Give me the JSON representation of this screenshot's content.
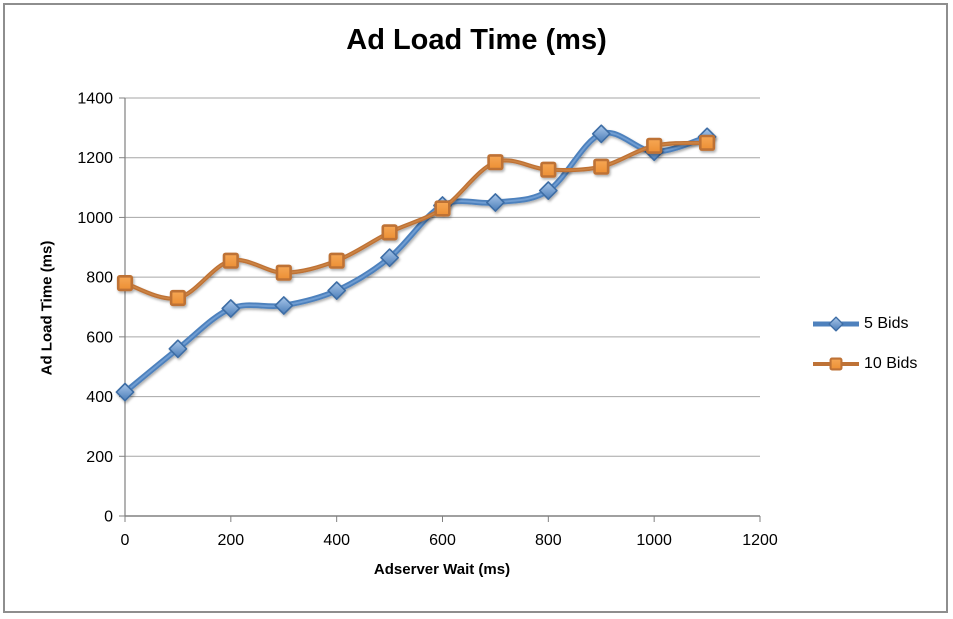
{
  "chart_data": {
    "type": "line",
    "title": "Ad Load Time (ms)",
    "xlabel": "Adserver Wait (ms)",
    "ylabel": "Ad Load Time (ms)",
    "x": [
      0,
      100,
      200,
      300,
      400,
      500,
      600,
      700,
      800,
      900,
      1000,
      1100
    ],
    "series": [
      {
        "name": "5 Bids",
        "marker": "diamond",
        "line_color": "#4E81BD",
        "line_highlight": "#7FA9DC",
        "marker_fill_top": "#A9C7EA",
        "marker_fill_bottom": "#4B7DB8",
        "marker_edge": "#3E6DA5",
        "values": [
          415,
          560,
          695,
          705,
          755,
          865,
          1040,
          1050,
          1090,
          1280,
          1220,
          1270
        ]
      },
      {
        "name": "10 Bids",
        "marker": "square",
        "line_color": "#BE7236",
        "line_highlight": "#D18C4C",
        "marker_fill_top": "#F6A755",
        "marker_fill_bottom": "#EC8F34",
        "marker_edge": "#BE7236",
        "values": [
          780,
          730,
          855,
          815,
          855,
          950,
          1030,
          1185,
          1160,
          1170,
          1240,
          1250
        ]
      }
    ],
    "xlim": [
      0,
      1200
    ],
    "ylim": [
      0,
      1400
    ],
    "x_ticks": [
      0,
      200,
      400,
      600,
      800,
      1000,
      1200
    ],
    "y_ticks": [
      0,
      200,
      400,
      600,
      800,
      1000,
      1200,
      1400
    ],
    "grid": "horizontal-only",
    "legend_position": "right-middle",
    "smooth_lines": true
  },
  "colors": {
    "background": "#FFFFFF",
    "canvas_border": "#8E8E8E",
    "gridline": "#A6A6A6",
    "axis": "#808080",
    "text": "#000000"
  }
}
